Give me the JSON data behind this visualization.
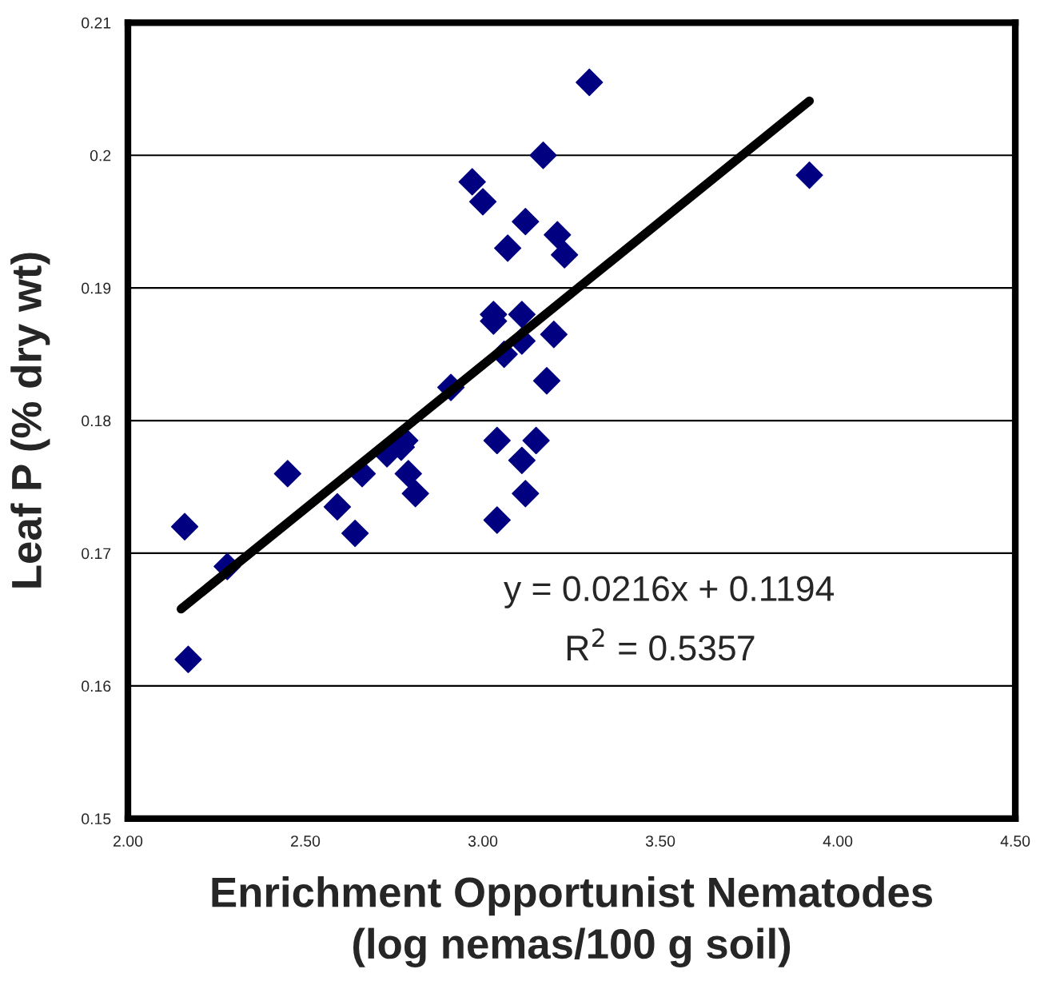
{
  "chart_data": {
    "type": "scatter",
    "xlabel": "Enrichment Opportunist Nematodes\n(log nemas/100 g soil)",
    "ylabel": "Leaf P (% dry wt)",
    "series": [
      {
        "color": "#000080",
        "marker": "diamond",
        "x": [
          2.16,
          2.17,
          2.28,
          2.45,
          2.59,
          2.64,
          2.66,
          2.73,
          2.77,
          2.78,
          2.79,
          2.81,
          2.91,
          2.97,
          3.0,
          3.03,
          3.03,
          3.04,
          3.04,
          3.06,
          3.07,
          3.11,
          3.11,
          3.11,
          3.12,
          3.12,
          3.15,
          3.17,
          3.18,
          3.2,
          3.21,
          3.23,
          3.3,
          3.92
        ],
        "values": [
          0.172,
          0.162,
          0.169,
          0.176,
          0.1735,
          0.1715,
          0.176,
          0.1775,
          0.178,
          0.1785,
          0.176,
          0.1745,
          0.1825,
          0.198,
          0.1965,
          0.188,
          0.1875,
          0.1785,
          0.1725,
          0.185,
          0.193,
          0.188,
          0.186,
          0.177,
          0.195,
          0.1745,
          0.1785,
          0.2,
          0.183,
          0.1865,
          0.194,
          0.1925,
          0.2055,
          0.1985
        ]
      },
      {
        "type": "line",
        "color": "#000000",
        "marker": "none",
        "line_style": "solid",
        "x": [
          2.15,
          3.92
        ],
        "values": [
          0.1658,
          0.2041
        ]
      }
    ],
    "xlim": [
      2.0,
      4.5
    ],
    "xticks": [
      {
        "value": 2.0,
        "label": "2.00"
      },
      {
        "value": 2.5,
        "label": "2.50"
      },
      {
        "value": 3.0,
        "label": "3.00"
      },
      {
        "value": 3.5,
        "label": "3.50"
      },
      {
        "value": 4.0,
        "label": "4.00"
      },
      {
        "value": 4.5,
        "label": "4.50"
      }
    ],
    "ylim": [
      0.15,
      0.21
    ],
    "yticks": [
      0.15,
      0.16,
      0.17,
      0.18,
      0.19,
      {
        "value": 0.2,
        "label": "0.2"
      },
      0.21
    ],
    "grid": "y",
    "legend": false,
    "annotations": [
      "y = 0.0216x + 0.1194",
      "R$^{2}$ = 0.5357"
    ]
  }
}
